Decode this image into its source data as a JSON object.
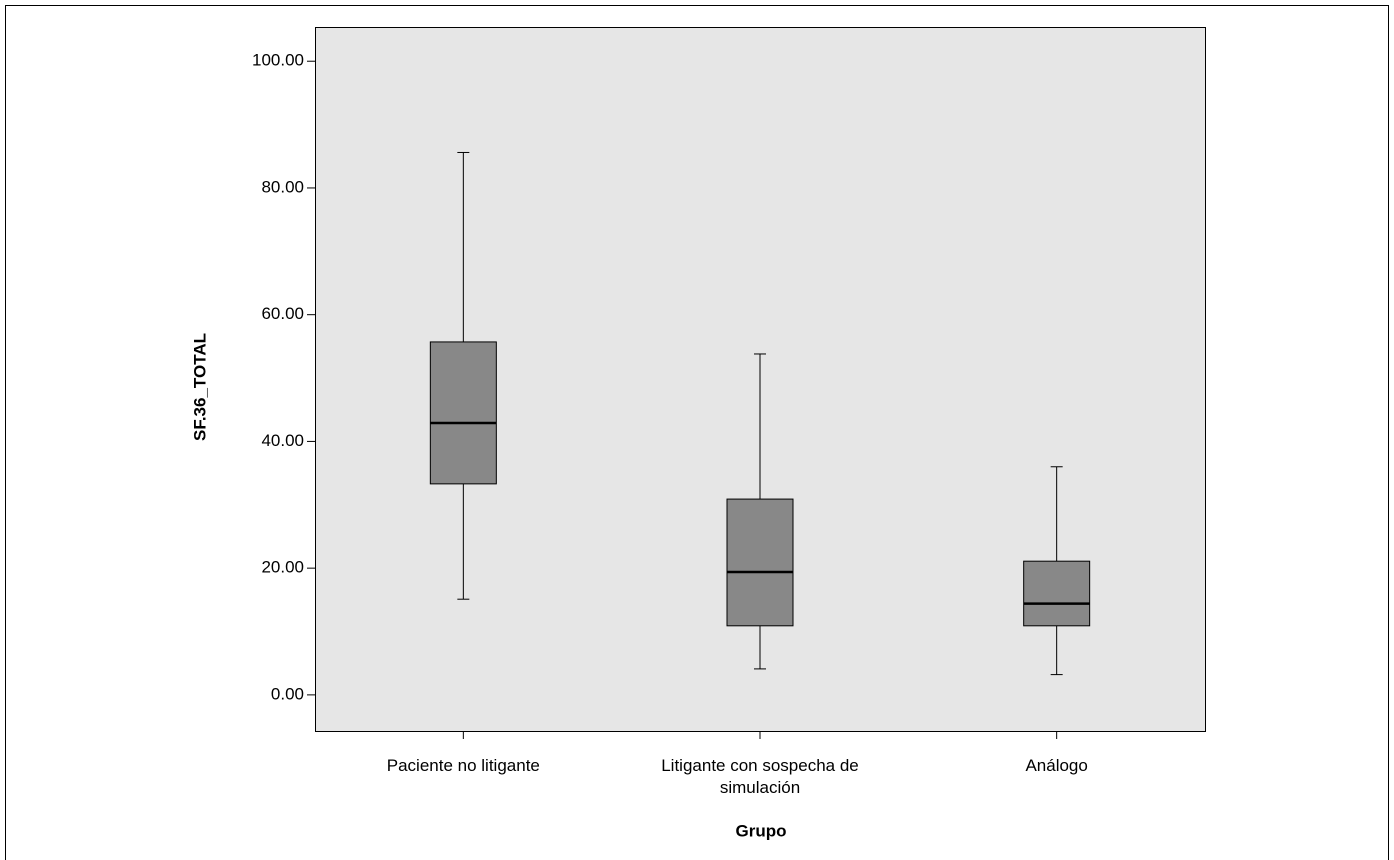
{
  "chart_data": {
    "type": "box",
    "y_label": "SF.36_TOTAL",
    "x_label": "Grupo",
    "categories": [
      "Paciente no litigante",
      "Litigante con sospecha de simulación",
      "Análogo"
    ],
    "color": "#888888",
    "min": [
      15.1,
      4.1,
      3.2
    ],
    "q1": [
      33.3,
      10.9,
      10.9
    ],
    "median": [
      42.9,
      19.4,
      14.4
    ],
    "q3": [
      55.7,
      30.9,
      21.1
    ],
    "max": [
      85.6,
      53.8,
      36.0
    ],
    "ylim": [
      -5.7,
      105.4
    ],
    "yticks": [
      {
        "value": 0,
        "label": "0.00"
      },
      {
        "value": 20,
        "label": "20.00"
      },
      {
        "value": 40,
        "label": "40.00"
      },
      {
        "value": 60,
        "label": "60.00"
      },
      {
        "value": 80,
        "label": "80.00"
      },
      {
        "value": 100,
        "label": "100.00"
      }
    ]
  }
}
